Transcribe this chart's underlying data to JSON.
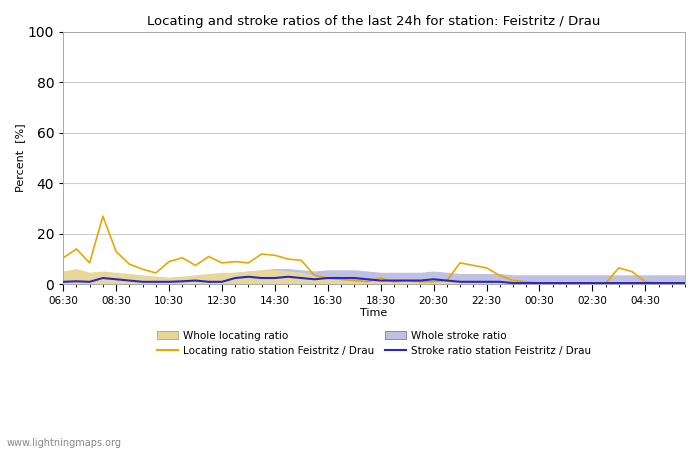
{
  "title": "Locating and stroke ratios of the last 24h for station: Feistritz / Drau",
  "xlabel": "Time",
  "ylabel": "Percent  [%]",
  "ylim": [
    0,
    100
  ],
  "yticks": [
    0,
    20,
    40,
    60,
    80,
    100
  ],
  "x_major_labels": [
    "06:30",
    "08:30",
    "10:30",
    "12:30",
    "14:30",
    "16:30",
    "18:30",
    "20:30",
    "22:30",
    "00:30",
    "02:30",
    "04:30",
    "06:30"
  ],
  "watermark": "www.lightningmaps.org",
  "bg_color": "#ffffff",
  "plot_bg_color": "#ffffff",
  "grid_color": "#cccccc",
  "whole_locating_color": "#e8d898",
  "whole_stroke_color": "#c0c0e0",
  "locating_line_color": "#e8a800",
  "stroke_line_color": "#2828c8",
  "locating_ratio": [
    10.5,
    14.0,
    8.5,
    27.0,
    13.0,
    8.0,
    6.0,
    4.5,
    9.0,
    10.5,
    7.5,
    11.0,
    8.5,
    9.0,
    8.5,
    12.0,
    11.5,
    10.0,
    9.5,
    3.5,
    2.5,
    2.0,
    1.5,
    1.0,
    2.5,
    1.0,
    1.5,
    1.0,
    1.0,
    1.5,
    8.5,
    7.5,
    6.5,
    3.5,
    1.5,
    1.0,
    0.5,
    0.5,
    0.5,
    0.5,
    0.5,
    0.5,
    6.5,
    5.0,
    1.0,
    0.5,
    0.5,
    0.5
  ],
  "stroke_ratio": [
    1.0,
    1.2,
    1.0,
    2.5,
    2.0,
    1.5,
    1.0,
    1.0,
    1.0,
    1.2,
    1.5,
    1.0,
    1.0,
    2.5,
    3.0,
    2.5,
    2.5,
    3.0,
    2.5,
    2.0,
    2.5,
    2.5,
    2.5,
    2.0,
    1.5,
    1.5,
    1.5,
    1.5,
    2.0,
    1.5,
    1.0,
    1.0,
    1.0,
    1.0,
    0.5,
    0.5,
    0.5,
    0.5,
    0.5,
    0.5,
    0.5,
    0.5,
    0.5,
    0.5,
    0.5,
    0.5,
    0.5,
    0.5
  ],
  "whole_locating": [
    5.0,
    6.0,
    4.5,
    5.0,
    4.5,
    4.0,
    3.5,
    3.0,
    2.5,
    3.0,
    3.5,
    4.0,
    4.5,
    4.5,
    5.0,
    5.5,
    5.5,
    5.0,
    4.5,
    3.0,
    2.0,
    1.5,
    1.5,
    1.2,
    2.0,
    1.5,
    1.5,
    1.5,
    1.5,
    1.2,
    1.0,
    1.0,
    1.0,
    1.0,
    0.8,
    0.8,
    0.7,
    0.7,
    0.7,
    0.7,
    0.7,
    0.7,
    1.0,
    1.0,
    0.8,
    0.7,
    0.7,
    0.7
  ],
  "whole_stroke": [
    4.5,
    5.0,
    4.0,
    4.5,
    4.0,
    3.5,
    3.0,
    2.5,
    2.5,
    2.8,
    3.0,
    3.5,
    4.0,
    4.5,
    5.0,
    5.5,
    6.0,
    6.0,
    5.5,
    5.0,
    5.5,
    5.5,
    5.5,
    5.0,
    4.5,
    4.5,
    4.5,
    4.5,
    5.0,
    4.5,
    4.0,
    4.0,
    4.0,
    4.0,
    3.5,
    3.5,
    3.5,
    3.5,
    3.5,
    3.5,
    3.5,
    3.5,
    3.5,
    3.5,
    3.5,
    3.5,
    3.5,
    3.5
  ],
  "n_points": 48
}
